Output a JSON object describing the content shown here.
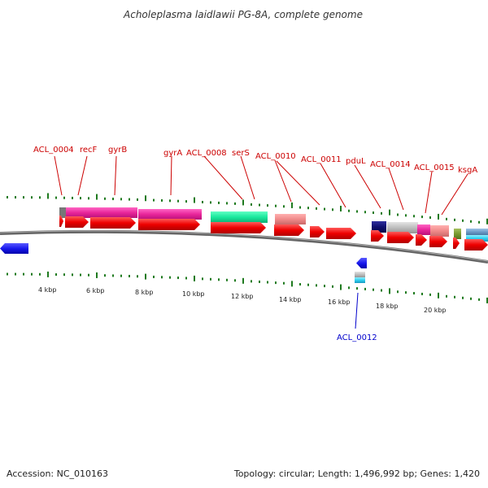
{
  "title": "Acholeplasma laidlawii PG-8A, complete genome",
  "footer": {
    "accession": "Accession: NC_010163",
    "topology": "Topology: circular; Length: 1,496,992 bp; Genes: 1,420"
  },
  "scale_labels": [
    "4 kbp",
    "6 kbp",
    "8 kbp",
    "10 kbp",
    "12 kbp",
    "14 kbp",
    "16 kbp",
    "18 kbp",
    "20 kbp"
  ],
  "gene_labels": [
    {
      "text": "ACL_0004",
      "color": "#cc0000"
    },
    {
      "text": "recF",
      "color": "#cc0000"
    },
    {
      "text": "gyrB",
      "color": "#cc0000"
    },
    {
      "text": "gyrA",
      "color": "#cc0000"
    },
    {
      "text": "ACL_0008",
      "color": "#cc0000"
    },
    {
      "text": "serS",
      "color": "#cc0000"
    },
    {
      "text": "ACL_0010",
      "color": "#cc0000"
    },
    {
      "text": "ACL_0011",
      "color": "#cc0000"
    },
    {
      "text": "pduL",
      "color": "#cc0000"
    },
    {
      "text": "ACL_0014",
      "color": "#cc0000"
    },
    {
      "text": "ACL_0015",
      "color": "#cc0000"
    },
    {
      "text": "ksgA",
      "color": "#cc0000"
    },
    {
      "text": "ACL_0012",
      "color": "#0000cc"
    }
  ],
  "colors": {
    "forward_gene": "#ee0000",
    "reverse_gene": "#1a1aee",
    "backbone": "#777777",
    "tick": "#1f7a1f"
  }
}
